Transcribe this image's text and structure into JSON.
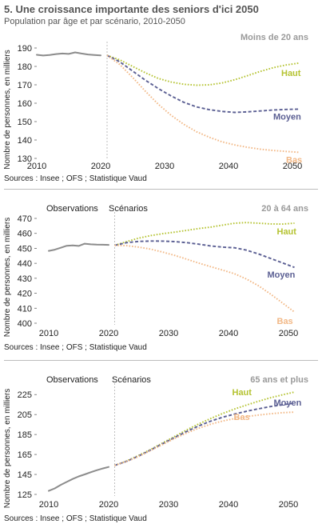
{
  "header": {
    "title": "5. Une croissance importante des seniors d'ici 2050",
    "subtitle": "Population par âge et par scénario, 2010-2050"
  },
  "colors": {
    "observed": "#8c8c8c",
    "haut": "#b5c332",
    "moyen": "#5b5f93",
    "bas": "#f2b886",
    "divider": "#b0b0b0"
  },
  "chart_data": [
    {
      "type": "line",
      "title": "Moins de 20 ans",
      "ylabel": "Nombre de personnes, en milliers",
      "sources": "Sources : Insee ; OFS ; Statistique Vaud",
      "region_labels": [],
      "xlim": [
        2010,
        2052
      ],
      "ylim": [
        130,
        190
      ],
      "xticks": [
        "2010",
        "2020",
        "2030",
        "2040",
        "2050"
      ],
      "yticks": [
        "130",
        "140",
        "150",
        "160",
        "170",
        "180",
        "190"
      ],
      "divider_x": 2021,
      "series": [
        {
          "name": "",
          "role": "observed",
          "x": [
            2010,
            2011,
            2012,
            2013,
            2014,
            2015,
            2016,
            2017,
            2018,
            2019,
            2020
          ],
          "y": [
            186.3,
            185.9,
            186.2,
            186.7,
            187.0,
            186.8,
            187.6,
            187.0,
            186.5,
            186.2,
            186.0
          ]
        },
        {
          "name": "Haut",
          "role": "haut",
          "x": [
            2021,
            2023,
            2025,
            2027,
            2029,
            2031,
            2033,
            2035,
            2037,
            2039,
            2041,
            2043,
            2045,
            2047,
            2049,
            2051
          ],
          "y": [
            186.0,
            183.5,
            180.0,
            176.5,
            173.5,
            171.5,
            170.3,
            169.8,
            170.0,
            171.0,
            172.8,
            175.0,
            177.3,
            179.3,
            180.8,
            181.8
          ]
        },
        {
          "name": "Moyen",
          "role": "moyen",
          "x": [
            2021,
            2023,
            2025,
            2027,
            2029,
            2031,
            2033,
            2035,
            2037,
            2039,
            2041,
            2043,
            2045,
            2047,
            2049,
            2051
          ],
          "y": [
            186.0,
            182.5,
            177.5,
            172.5,
            168.0,
            164.0,
            160.5,
            158.0,
            156.5,
            155.5,
            155.0,
            155.3,
            155.8,
            156.3,
            156.6,
            156.8
          ]
        },
        {
          "name": "Bas",
          "role": "bas",
          "x": [
            2021,
            2023,
            2025,
            2027,
            2029,
            2031,
            2033,
            2035,
            2037,
            2039,
            2041,
            2043,
            2045,
            2047,
            2049,
            2051
          ],
          "y": [
            186.0,
            181.0,
            174.0,
            166.5,
            159.5,
            153.5,
            148.5,
            144.5,
            141.5,
            139.0,
            137.3,
            136.0,
            135.0,
            134.3,
            133.8,
            133.3
          ]
        }
      ]
    },
    {
      "type": "line",
      "title": "20 à 64 ans",
      "ylabel": "Nombre de personnes, en milliers",
      "sources": "Sources : Insee ; OFS ; Statistique Vaud",
      "region_labels": [
        "Observations",
        "Scénarios"
      ],
      "xlim": [
        2008,
        2052
      ],
      "ylim": [
        400,
        470
      ],
      "xticks": [
        "2010",
        "2020",
        "2030",
        "2040",
        "2050"
      ],
      "yticks": [
        "400",
        "410",
        "420",
        "430",
        "440",
        "450",
        "460",
        "470"
      ],
      "divider_x": 2021,
      "series": [
        {
          "name": "",
          "role": "observed",
          "x": [
            2010,
            2011,
            2012,
            2013,
            2014,
            2015,
            2016,
            2017,
            2018,
            2019,
            2020
          ],
          "y": [
            448.3,
            449.1,
            450.4,
            451.7,
            452.0,
            451.6,
            453.1,
            452.7,
            452.5,
            452.4,
            452.3
          ]
        },
        {
          "name": "Haut",
          "role": "haut",
          "x": [
            2021,
            2023,
            2025,
            2027,
            2029,
            2031,
            2033,
            2035,
            2037,
            2039,
            2041,
            2043,
            2045,
            2047,
            2049,
            2051
          ],
          "y": [
            452.0,
            454.5,
            456.8,
            458.5,
            459.8,
            460.8,
            462.0,
            463.2,
            464.2,
            465.5,
            466.8,
            467.2,
            466.8,
            466.3,
            466.2,
            466.8
          ]
        },
        {
          "name": "Moyen",
          "role": "moyen",
          "x": [
            2021,
            2023,
            2025,
            2027,
            2029,
            2031,
            2033,
            2035,
            2037,
            2039,
            2041,
            2043,
            2045,
            2047,
            2049,
            2051
          ],
          "y": [
            452.0,
            453.8,
            454.6,
            454.9,
            454.8,
            454.5,
            453.8,
            452.8,
            451.6,
            450.8,
            450.4,
            448.8,
            446.3,
            443.3,
            440.3,
            437.3
          ]
        },
        {
          "name": "Bas",
          "role": "bas",
          "x": [
            2021,
            2023,
            2025,
            2027,
            2029,
            2031,
            2033,
            2035,
            2037,
            2039,
            2041,
            2043,
            2045,
            2047,
            2049,
            2051
          ],
          "y": [
            452.0,
            451.8,
            450.8,
            449.5,
            447.5,
            445.3,
            442.8,
            440.2,
            437.8,
            435.5,
            433.0,
            429.5,
            425.0,
            419.5,
            413.5,
            407.5
          ]
        }
      ]
    },
    {
      "type": "line",
      "title": "65 ans et plus",
      "ylabel": "Nombre de personnes, en milliers",
      "sources": "Sources : Insee ; OFS ; Statistique Vaud",
      "region_labels": [
        "Observations",
        "Scénarios"
      ],
      "xlim": [
        2008,
        2052
      ],
      "ylim": [
        125,
        230
      ],
      "xticks": [
        "2010",
        "2020",
        "2030",
        "2040",
        "2050"
      ],
      "yticks": [
        "125",
        "145",
        "165",
        "185",
        "205",
        "225"
      ],
      "divider_x": 2021,
      "series": [
        {
          "name": "",
          "role": "observed",
          "x": [
            2010,
            2011,
            2012,
            2013,
            2014,
            2015,
            2016,
            2017,
            2018,
            2019,
            2020
          ],
          "y": [
            128.5,
            131.0,
            134.5,
            137.5,
            140.5,
            143.0,
            145.0,
            147.2,
            149.2,
            151.0,
            152.5
          ]
        },
        {
          "name": "Haut",
          "role": "haut",
          "x": [
            2021,
            2023,
            2025,
            2027,
            2029,
            2031,
            2033,
            2035,
            2037,
            2039,
            2041,
            2043,
            2045,
            2047,
            2049,
            2051
          ],
          "y": [
            154.0,
            158.5,
            164.0,
            170.0,
            176.5,
            183.0,
            189.5,
            195.5,
            201.0,
            206.0,
            210.5,
            214.5,
            218.3,
            221.8,
            224.8,
            227.5
          ]
        },
        {
          "name": "Moyen",
          "role": "moyen",
          "x": [
            2021,
            2023,
            2025,
            2027,
            2029,
            2031,
            2033,
            2035,
            2037,
            2039,
            2041,
            2043,
            2045,
            2047,
            2049,
            2051
          ],
          "y": [
            154.0,
            158.2,
            163.5,
            169.5,
            175.8,
            182.0,
            188.0,
            193.5,
            198.3,
            202.3,
            205.5,
            208.3,
            210.8,
            213.0,
            214.8,
            216.5
          ]
        },
        {
          "name": "Bas",
          "role": "bas",
          "x": [
            2021,
            2023,
            2025,
            2027,
            2029,
            2031,
            2033,
            2035,
            2037,
            2039,
            2041,
            2043,
            2045,
            2047,
            2049,
            2051
          ],
          "y": [
            154.0,
            158.0,
            163.0,
            169.0,
            175.0,
            181.0,
            186.5,
            191.3,
            195.3,
            198.5,
            201.0,
            203.0,
            204.5,
            205.8,
            206.8,
            207.5
          ]
        }
      ]
    }
  ]
}
